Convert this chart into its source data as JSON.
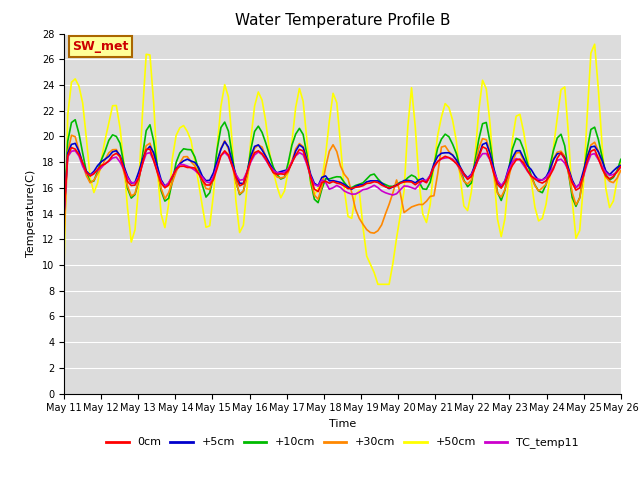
{
  "title": "Water Temperature Profile B",
  "xlabel": "Time",
  "ylabel": "Temperature(C)",
  "ylim": [
    0,
    28
  ],
  "yticks": [
    0,
    2,
    4,
    6,
    8,
    10,
    12,
    14,
    16,
    18,
    20,
    22,
    24,
    26,
    28
  ],
  "annotation_text": "SW_met",
  "annotation_color": "#cc0000",
  "annotation_bg": "#ffff99",
  "annotation_edge": "#aa6600",
  "series_colors": {
    "0cm": "#ff0000",
    "+5cm": "#0000cc",
    "+10cm": "#00bb00",
    "+30cm": "#ff8800",
    "+50cm": "#ffff00",
    "TC_temp11": "#cc00cc"
  },
  "series_lw": 1.2,
  "x_labels": [
    "May 11",
    "May 12",
    "May 13",
    "May 14",
    "May 15",
    "May 16",
    "May 17",
    "May 18",
    "May 19",
    "May 20",
    "May 21",
    "May 22",
    "May 23",
    "May 24",
    "May 25",
    "May 26"
  ],
  "tick_fontsize": 7,
  "title_fontsize": 11,
  "label_fontsize": 8,
  "legend_fontsize": 8
}
